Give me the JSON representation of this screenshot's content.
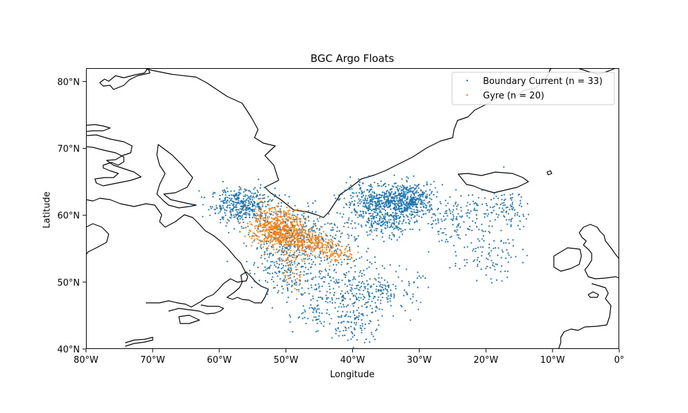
{
  "chart_data": {
    "type": "scatter",
    "title": "BGC Argo Floats",
    "xlabel": "Longitude",
    "ylabel": "Latitude",
    "xlim": [
      -80,
      0
    ],
    "ylim": [
      40,
      82
    ],
    "x_ticks": [
      -80,
      -70,
      -60,
      -50,
      -40,
      -30,
      -20,
      -10,
      0
    ],
    "x_tick_labels": [
      "80°W",
      "70°W",
      "60°W",
      "50°W",
      "40°W",
      "30°W",
      "20°W",
      "10°W",
      "0°"
    ],
    "y_ticks": [
      40,
      50,
      60,
      70,
      80
    ],
    "y_tick_labels": [
      "40°N",
      "50°N",
      "60°N",
      "70°N",
      "80°N"
    ],
    "grid": false,
    "legend_position": "top-right",
    "coastlines": true,
    "series": [
      {
        "name": "Boundary Current (n = 33)",
        "color": "#1f77b4",
        "clusters": [
          {
            "lon": -56.5,
            "lat": 61.5,
            "sx": 2.4,
            "sy": 1.3,
            "n": 420
          },
          {
            "lon": -36.5,
            "lat": 62.0,
            "sx": 2.6,
            "sy": 1.3,
            "n": 380
          },
          {
            "lon": -31.5,
            "lat": 62.3,
            "sx": 2.0,
            "sy": 1.3,
            "n": 420
          },
          {
            "lon": -35.0,
            "lat": 58.8,
            "sx": 2.2,
            "sy": 1.2,
            "n": 200
          },
          {
            "lon": -47.0,
            "lat": 57.5,
            "sx": 3.5,
            "sy": 1.8,
            "n": 240
          },
          {
            "lon": -51.0,
            "lat": 55.0,
            "sx": 2.5,
            "sy": 2.0,
            "n": 160
          },
          {
            "lon": -50.0,
            "lat": 51.0,
            "sx": 2.0,
            "sy": 1.4,
            "n": 110
          },
          {
            "lon": -41.0,
            "lat": 48.5,
            "sx": 3.5,
            "sy": 2.0,
            "n": 200
          },
          {
            "lon": -35.0,
            "lat": 48.8,
            "sx": 2.5,
            "sy": 1.6,
            "n": 110
          },
          {
            "lon": -40.0,
            "lat": 43.5,
            "sx": 2.2,
            "sy": 1.6,
            "n": 100
          },
          {
            "lon": -46.0,
            "lat": 45.5,
            "sx": 2.0,
            "sy": 1.8,
            "n": 50
          },
          {
            "lon": -24.0,
            "lat": 59.5,
            "sx": 3.5,
            "sy": 1.8,
            "n": 160
          },
          {
            "lon": -17.0,
            "lat": 61.0,
            "sx": 1.7,
            "sy": 1.2,
            "n": 80
          },
          {
            "lon": -20.0,
            "lat": 54.0,
            "sx": 2.5,
            "sy": 1.8,
            "n": 90
          },
          {
            "lon": -43.0,
            "lat": 53.5,
            "sx": 3.0,
            "sy": 1.8,
            "n": 100
          }
        ]
      },
      {
        "name": "Gyre (n = 20)",
        "color": "#ff7f0e",
        "clusters": [
          {
            "lon": -51.0,
            "lat": 57.8,
            "sx": 1.9,
            "sy": 1.4,
            "n": 520
          },
          {
            "lon": -46.5,
            "lat": 56.0,
            "sx": 2.0,
            "sy": 1.2,
            "n": 260
          },
          {
            "lon": -42.5,
            "lat": 54.3,
            "sx": 1.5,
            "sy": 0.7,
            "n": 70
          },
          {
            "lon": -53.5,
            "lat": 60.5,
            "sx": 1.2,
            "sy": 1.2,
            "n": 50
          },
          {
            "lon": -49.0,
            "lat": 51.5,
            "sx": 0.9,
            "sy": 1.3,
            "n": 40
          }
        ]
      }
    ]
  }
}
